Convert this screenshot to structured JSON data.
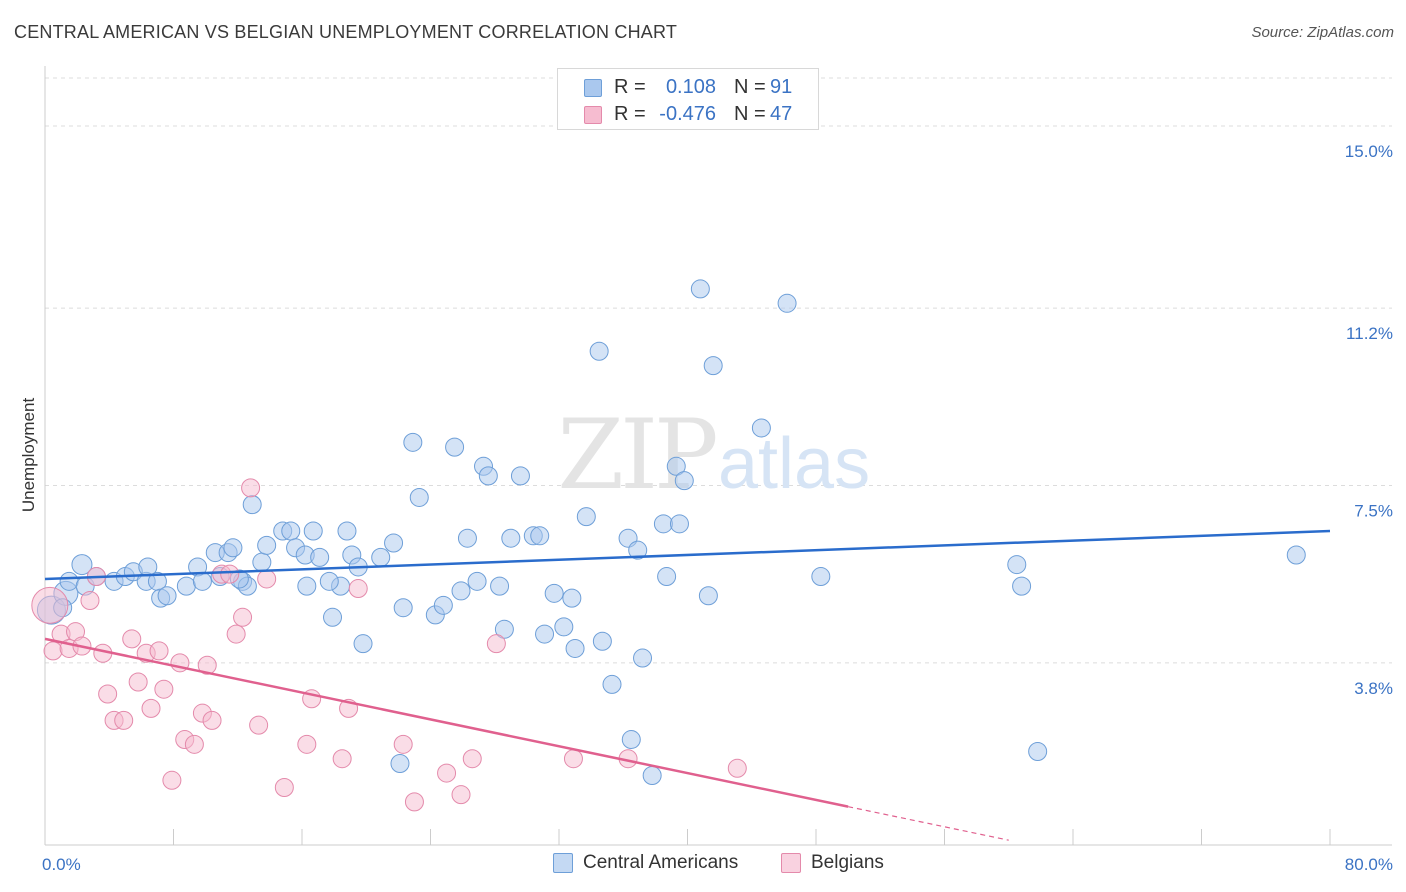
{
  "header": {
    "title": "CENTRAL AMERICAN VS BELGIAN UNEMPLOYMENT CORRELATION CHART",
    "source": "Source: ZipAtlas.com"
  },
  "watermark": {
    "part1": "ZIP",
    "part2": "atlas"
  },
  "legend_top": [
    {
      "r_label": "R =",
      "r_value": "0.108",
      "n_label": "N =",
      "n_value": "91"
    },
    {
      "r_label": "R =",
      "r_value": "-0.476",
      "n_label": "N =",
      "n_value": "47"
    }
  ],
  "legend_bottom": [
    {
      "label": "Central Americans"
    },
    {
      "label": "Belgians"
    }
  ],
  "colors": {
    "blue_fill": "#aac8ee",
    "blue_stroke": "#6e9fd8",
    "blue_line": "#2a6ccc",
    "pink_fill": "#f6bcd0",
    "pink_stroke": "#e48aab",
    "pink_line": "#e0608e",
    "tick_text": "#3b73c4",
    "grid": "#dcdcdc",
    "axis": "#cccccc"
  },
  "chart_data": {
    "type": "scatter",
    "title": "CENTRAL AMERICAN VS BELGIAN UNEMPLOYMENT CORRELATION CHART",
    "xlabel": "",
    "ylabel": "Unemployment",
    "xlim": [
      0,
      80
    ],
    "ylim": [
      0,
      16
    ],
    "x_tick_labels": [
      {
        "value": 0,
        "label": "0.0%"
      },
      {
        "value": 80,
        "label": "80.0%"
      }
    ],
    "y_ticks": [
      {
        "value": 3.8,
        "label": "3.8%"
      },
      {
        "value": 7.5,
        "label": "7.5%"
      },
      {
        "value": 11.2,
        "label": "11.2%"
      },
      {
        "value": 15.0,
        "label": "15.0%"
      }
    ],
    "series": [
      {
        "name": "Central Americans",
        "color": "blue",
        "r": 0.108,
        "n": 91,
        "trend": {
          "x": [
            0,
            80
          ],
          "y": [
            5.55,
            6.55
          ]
        },
        "points": [
          [
            0.4,
            4.9,
            14
          ],
          [
            1.3,
            5.25,
            12
          ],
          [
            1.5,
            5.5,
            9
          ],
          [
            2.3,
            5.85,
            10
          ],
          [
            2.5,
            5.4,
            9
          ],
          [
            3.2,
            5.6,
            9
          ],
          [
            4.3,
            5.5,
            9
          ],
          [
            5.0,
            5.6,
            9
          ],
          [
            5.5,
            5.7,
            9
          ],
          [
            6.3,
            5.5,
            9
          ],
          [
            6.4,
            5.8,
            9
          ],
          [
            7.0,
            5.5,
            9
          ],
          [
            7.2,
            5.15,
            9
          ],
          [
            7.6,
            5.2,
            9
          ],
          [
            8.8,
            5.4,
            9
          ],
          [
            9.5,
            5.8,
            9
          ],
          [
            9.8,
            5.5,
            9
          ],
          [
            10.6,
            6.1,
            9
          ],
          [
            10.9,
            5.6,
            9
          ],
          [
            11.4,
            6.1,
            9
          ],
          [
            11.7,
            6.2,
            9
          ],
          [
            12.3,
            5.5,
            9
          ],
          [
            12.6,
            5.4,
            9
          ],
          [
            12.9,
            7.1,
            9
          ],
          [
            13.5,
            5.9,
            9
          ],
          [
            13.8,
            6.25,
            9
          ],
          [
            14.8,
            6.55,
            9
          ],
          [
            15.3,
            6.55,
            9
          ],
          [
            15.6,
            6.2,
            9
          ],
          [
            16.2,
            6.05,
            9
          ],
          [
            16.3,
            5.4,
            9
          ],
          [
            16.7,
            6.55,
            9
          ],
          [
            17.1,
            6.0,
            9
          ],
          [
            17.9,
            4.75,
            9
          ],
          [
            18.4,
            5.4,
            9
          ],
          [
            18.8,
            6.55,
            9
          ],
          [
            19.1,
            6.05,
            9
          ],
          [
            19.5,
            5.8,
            9
          ],
          [
            19.8,
            4.2,
            9
          ],
          [
            20.9,
            6.0,
            9
          ],
          [
            21.7,
            6.3,
            9
          ],
          [
            22.3,
            4.95,
            9
          ],
          [
            22.9,
            8.4,
            9
          ],
          [
            23.3,
            7.25,
            9
          ],
          [
            24.3,
            4.8,
            9
          ],
          [
            24.8,
            5.0,
            9
          ],
          [
            25.5,
            8.3,
            9
          ],
          [
            25.9,
            5.3,
            9
          ],
          [
            26.3,
            6.4,
            9
          ],
          [
            26.9,
            5.5,
            9
          ],
          [
            27.3,
            7.9,
            9
          ],
          [
            27.6,
            7.7,
            9
          ],
          [
            28.3,
            5.4,
            9
          ],
          [
            28.6,
            4.5,
            9
          ],
          [
            29.0,
            6.4,
            9
          ],
          [
            29.6,
            7.7,
            9
          ],
          [
            30.4,
            6.45,
            9
          ],
          [
            30.8,
            6.45,
            9
          ],
          [
            31.1,
            4.4,
            9
          ],
          [
            31.7,
            5.25,
            9
          ],
          [
            32.3,
            4.55,
            9
          ],
          [
            32.8,
            5.15,
            9
          ],
          [
            33.0,
            4.1,
            9
          ],
          [
            33.7,
            6.85,
            9
          ],
          [
            34.5,
            10.3,
            9
          ],
          [
            34.7,
            4.25,
            9
          ],
          [
            35.3,
            3.35,
            9
          ],
          [
            36.3,
            6.4,
            9
          ],
          [
            36.5,
            2.2,
            9
          ],
          [
            36.9,
            6.15,
            9
          ],
          [
            37.2,
            3.9,
            9
          ],
          [
            37.8,
            1.45,
            9
          ],
          [
            38.5,
            6.7,
            9
          ],
          [
            38.7,
            5.6,
            9
          ],
          [
            39.3,
            7.9,
            9
          ],
          [
            39.5,
            6.7,
            9
          ],
          [
            39.8,
            7.6,
            9
          ],
          [
            40.8,
            11.6,
            9
          ],
          [
            41.3,
            5.2,
            9
          ],
          [
            41.6,
            10.0,
            9
          ],
          [
            44.6,
            8.7,
            9
          ],
          [
            46.2,
            11.3,
            9
          ],
          [
            48.3,
            5.6,
            9
          ],
          [
            60.5,
            5.85,
            9
          ],
          [
            60.8,
            5.4,
            9
          ],
          [
            61.8,
            1.95,
            9
          ],
          [
            77.9,
            6.05,
            9
          ],
          [
            22.1,
            1.7,
            9
          ],
          [
            12.1,
            5.55,
            9
          ],
          [
            17.7,
            5.5,
            9
          ],
          [
            1.1,
            4.95,
            9
          ]
        ]
      },
      {
        "name": "Belgians",
        "color": "pink",
        "r": -0.476,
        "n": 47,
        "trend": {
          "x": [
            0,
            50
          ],
          "y": [
            4.3,
            0.8
          ]
        },
        "trend_dashed": {
          "x": [
            50,
            60
          ],
          "y": [
            0.8,
            0.1
          ]
        },
        "points": [
          [
            0.3,
            5.0,
            18
          ],
          [
            0.5,
            4.05,
            9
          ],
          [
            1.0,
            4.4,
            9
          ],
          [
            1.5,
            4.1,
            9
          ],
          [
            1.9,
            4.45,
            9
          ],
          [
            2.3,
            4.15,
            9
          ],
          [
            2.8,
            5.1,
            9
          ],
          [
            3.2,
            5.6,
            9
          ],
          [
            3.6,
            4.0,
            9
          ],
          [
            3.9,
            3.15,
            9
          ],
          [
            4.3,
            2.6,
            9
          ],
          [
            4.9,
            2.6,
            9
          ],
          [
            5.4,
            4.3,
            9
          ],
          [
            5.8,
            3.4,
            9
          ],
          [
            6.3,
            4.0,
            9
          ],
          [
            6.6,
            2.85,
            9
          ],
          [
            7.1,
            4.05,
            9
          ],
          [
            7.4,
            3.25,
            9
          ],
          [
            7.9,
            1.35,
            9
          ],
          [
            8.4,
            3.8,
            9
          ],
          [
            8.7,
            2.2,
            9
          ],
          [
            9.3,
            2.1,
            9
          ],
          [
            9.8,
            2.75,
            9
          ],
          [
            10.1,
            3.75,
            9
          ],
          [
            10.4,
            2.6,
            9
          ],
          [
            11.0,
            5.65,
            9
          ],
          [
            11.5,
            5.65,
            9
          ],
          [
            11.9,
            4.4,
            9
          ],
          [
            12.3,
            4.75,
            9
          ],
          [
            12.8,
            7.45,
            9
          ],
          [
            13.3,
            2.5,
            9
          ],
          [
            13.8,
            5.55,
            9
          ],
          [
            14.9,
            1.2,
            9
          ],
          [
            16.3,
            2.1,
            9
          ],
          [
            16.6,
            3.05,
            9
          ],
          [
            18.5,
            1.8,
            9
          ],
          [
            18.9,
            2.85,
            9
          ],
          [
            19.5,
            5.35,
            9
          ],
          [
            22.3,
            2.1,
            9
          ],
          [
            23.0,
            0.9,
            9
          ],
          [
            25.0,
            1.5,
            9
          ],
          [
            25.9,
            1.05,
            9
          ],
          [
            26.6,
            1.8,
            9
          ],
          [
            28.1,
            4.2,
            9
          ],
          [
            32.9,
            1.8,
            9
          ],
          [
            36.3,
            1.8,
            9
          ],
          [
            43.1,
            1.6,
            9
          ]
        ]
      }
    ]
  }
}
